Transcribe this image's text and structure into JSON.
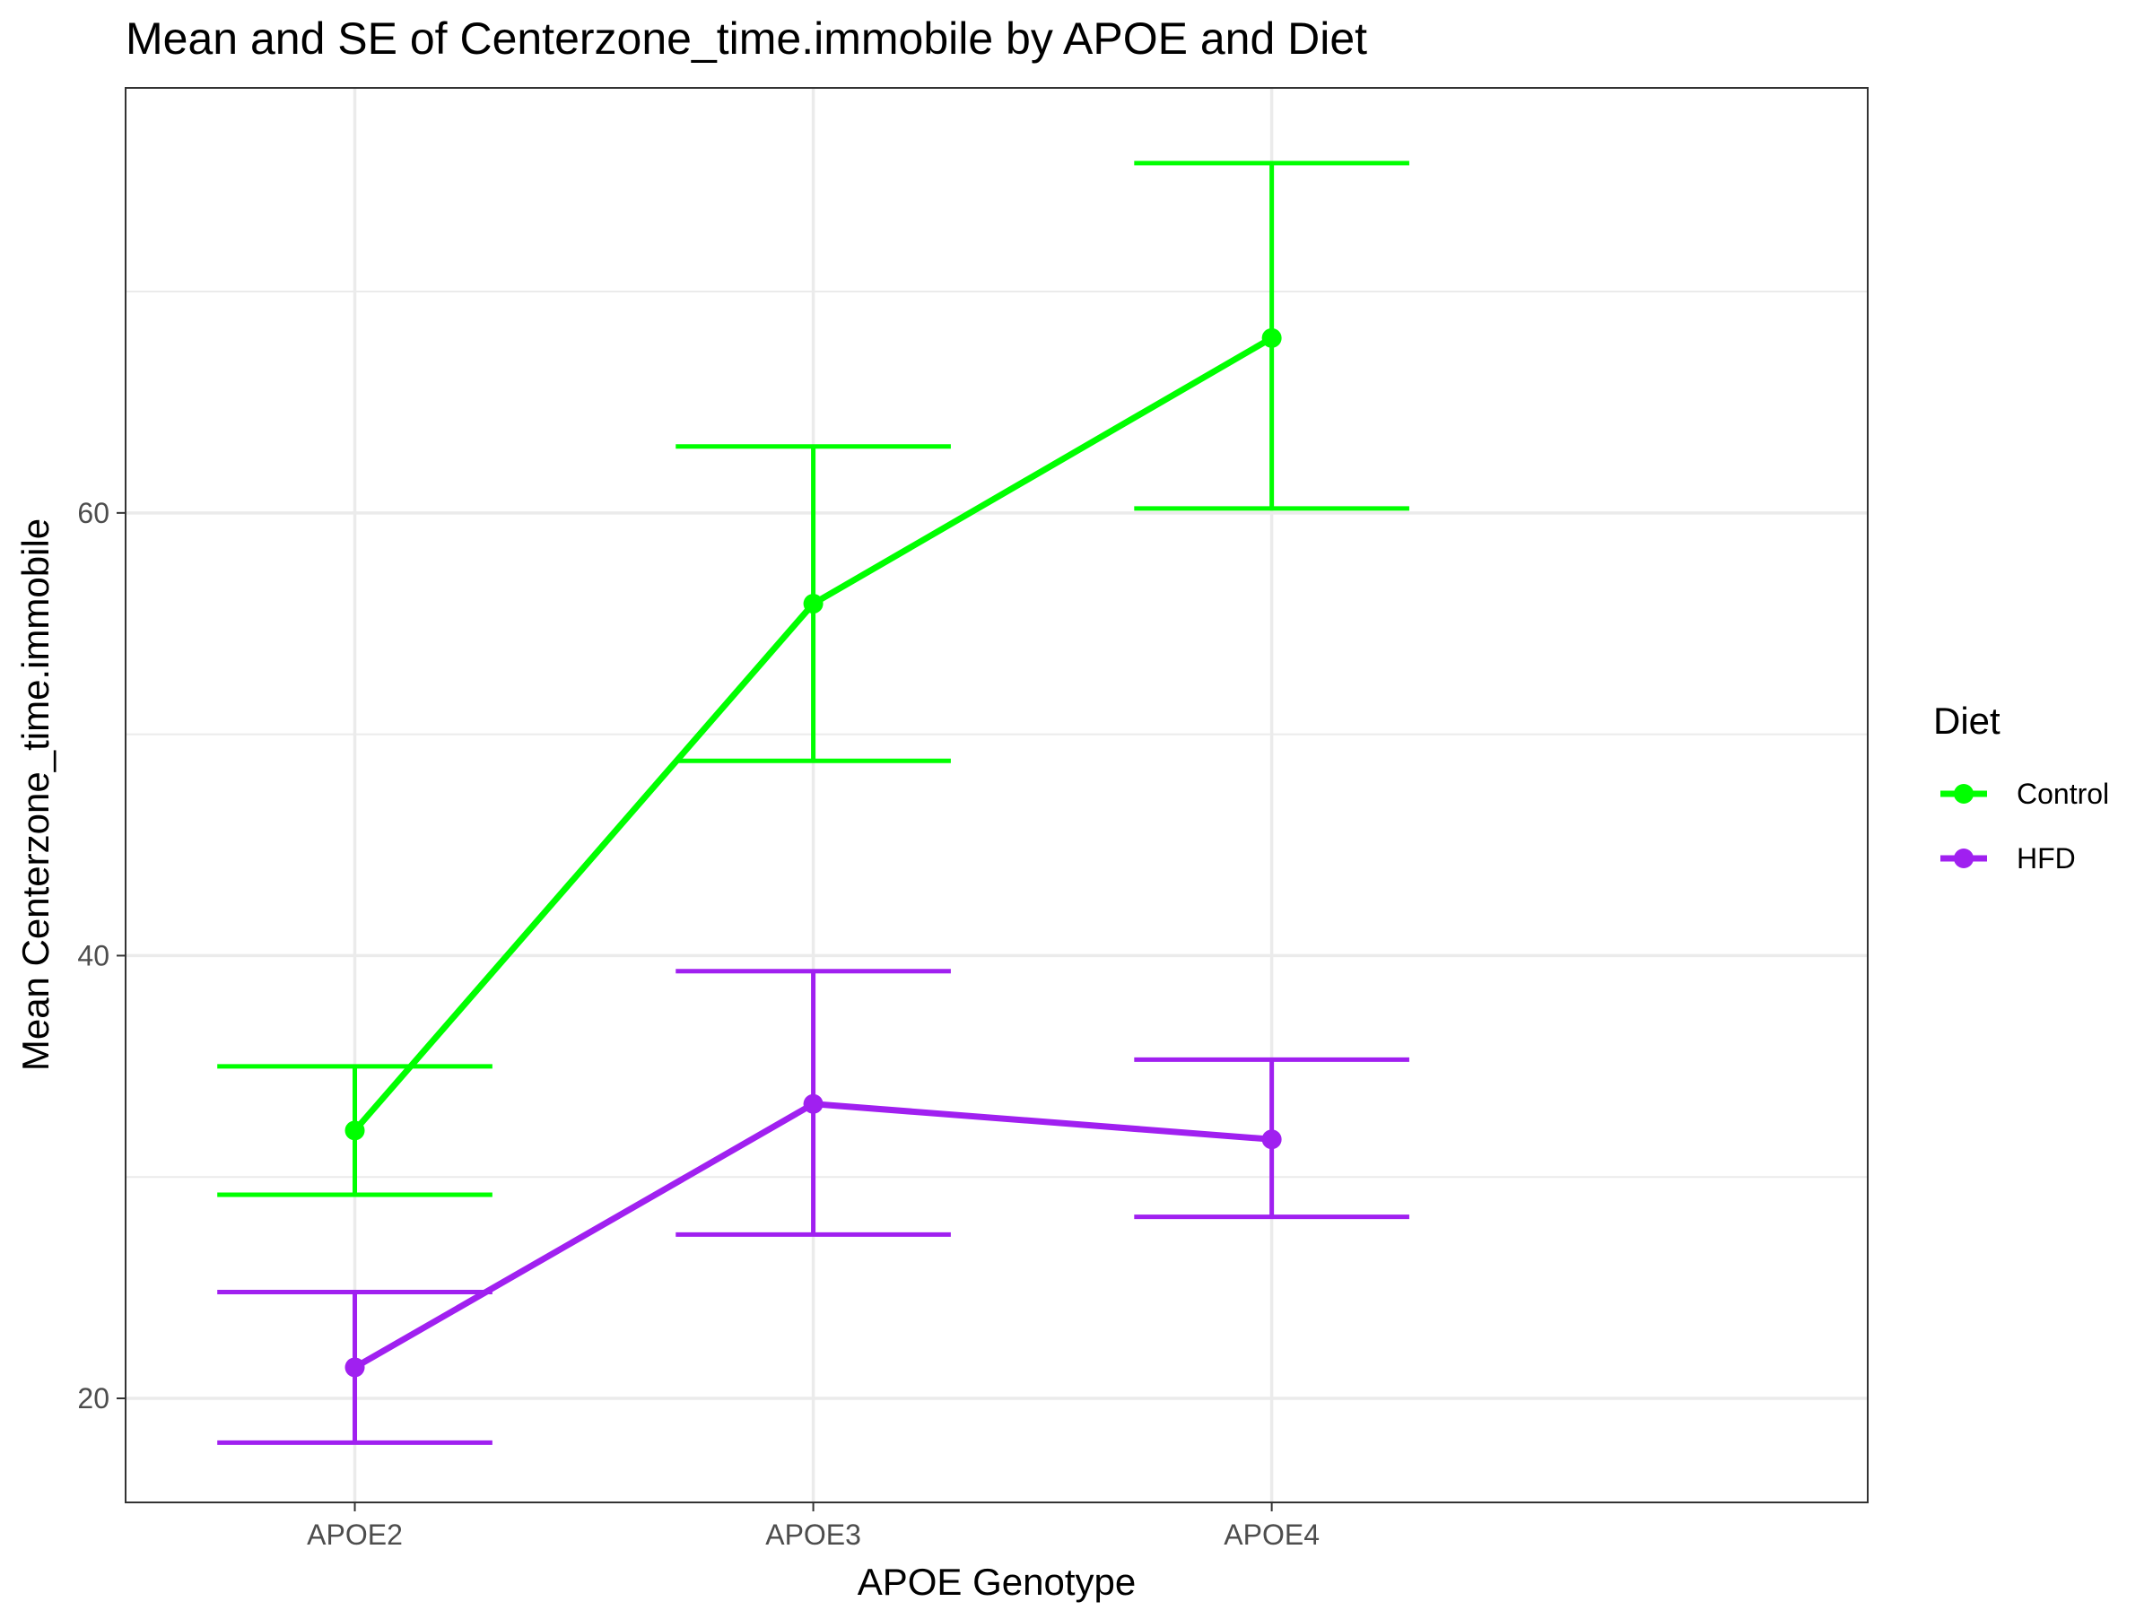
{
  "chart_data": {
    "type": "line",
    "title": "Mean and SE of Centerzone_time.immobile by APOE and Diet",
    "xlabel": "APOE Genotype",
    "ylabel": "Mean Centerzone_time.immobile",
    "categories": [
      "APOE2",
      "APOE3",
      "APOE4"
    ],
    "ylim": [
      15.3,
      79.2
    ],
    "yticks": [
      20,
      40,
      60
    ],
    "grid": true,
    "error_bars": "SE",
    "legend": {
      "title": "Diet",
      "position": "right"
    },
    "series": [
      {
        "name": "Control",
        "color": "#00ff00",
        "values": [
          32.1,
          55.9,
          67.9
        ],
        "lower": [
          29.2,
          48.8,
          60.2
        ],
        "upper": [
          35.0,
          63.0,
          75.8
        ]
      },
      {
        "name": "HFD",
        "color": "#a020f0",
        "values": [
          21.4,
          33.3,
          31.7
        ],
        "lower": [
          18.0,
          27.4,
          28.2
        ],
        "upper": [
          24.8,
          39.3,
          35.3
        ]
      }
    ]
  }
}
